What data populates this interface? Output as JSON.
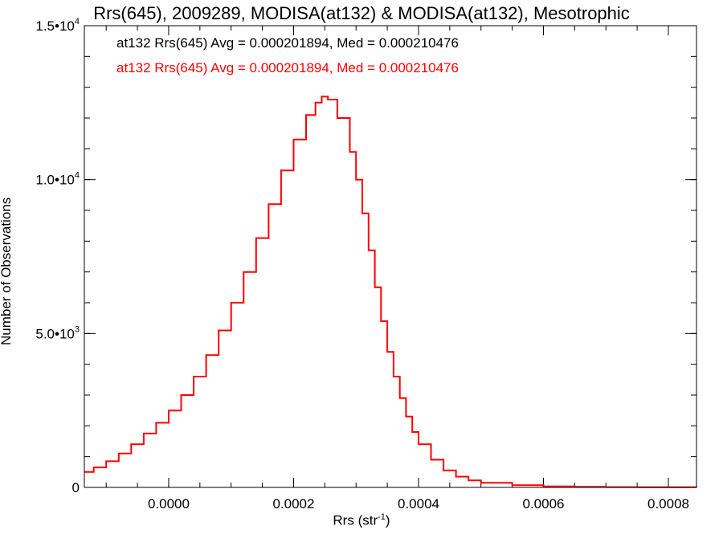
{
  "chart_data": {
    "type": "line",
    "title": "Rrs(645), 2009289, MODISA(at132) & MODISA(at132), Mesotrophic",
    "xlabel": "Rrs (str",
    "xlabel_sup": "-1",
    "xlabel_close": ")",
    "ylabel": "Number of Observations",
    "xlim": [
      -0.000135,
      0.000845
    ],
    "ylim": [
      0,
      15000
    ],
    "x_ticks": [
      {
        "value": 0.0,
        "label": "0.0000"
      },
      {
        "value": 0.0002,
        "label": "0.0002"
      },
      {
        "value": 0.0004,
        "label": "0.0004"
      },
      {
        "value": 0.0006,
        "label": "0.0006"
      },
      {
        "value": 0.0008,
        "label": "0.0008"
      }
    ],
    "y_ticks": [
      {
        "value": 0,
        "mantissa": "0",
        "exp": ""
      },
      {
        "value": 5000,
        "mantissa": "5.0•10",
        "exp": "3"
      },
      {
        "value": 10000,
        "mantissa": "1.0•10",
        "exp": "4"
      },
      {
        "value": 15000,
        "mantissa": "1.5•10",
        "exp": "4"
      }
    ],
    "x_minor_step": 5e-05,
    "y_minor_step": 1000,
    "grid": false,
    "legend": [
      {
        "text": "at132 Rrs(645) Avg = 0.000201894, Med = 0.000210476",
        "color": "#000000"
      },
      {
        "text": "at132 Rrs(645) Avg = 0.000201894, Med = 0.000210476",
        "color": "#ff0000"
      }
    ],
    "series": [
      {
        "color": "#ff0000",
        "style": "step",
        "x": [
          -0.000135,
          -0.00012,
          -0.0001,
          -8e-05,
          -6e-05,
          -4e-05,
          -2e-05,
          0.0,
          2e-05,
          4e-05,
          6e-05,
          8e-05,
          0.0001,
          0.00012,
          0.00014,
          0.00016,
          0.00018,
          0.0002,
          0.00022,
          0.000235,
          0.000245,
          0.000255,
          0.00027,
          0.00029,
          0.0003,
          0.00031,
          0.00032,
          0.00033,
          0.00034,
          0.00035,
          0.00036,
          0.00037,
          0.00038,
          0.00039,
          0.0004,
          0.00042,
          0.00044,
          0.00046,
          0.00048,
          0.0005,
          0.00055,
          0.0006,
          0.00065,
          0.0007,
          0.00075,
          0.0008,
          0.000845
        ],
        "y": [
          500,
          650,
          850,
          1100,
          1400,
          1750,
          2100,
          2500,
          3000,
          3600,
          4300,
          5100,
          6000,
          7000,
          8100,
          9200,
          10300,
          11300,
          12100,
          12500,
          12700,
          12600,
          12000,
          10900,
          10000,
          8900,
          7700,
          6500,
          5400,
          4400,
          3600,
          2900,
          2300,
          1800,
          1400,
          900,
          550,
          350,
          230,
          150,
          70,
          35,
          20,
          10,
          6,
          4,
          2
        ]
      }
    ]
  }
}
